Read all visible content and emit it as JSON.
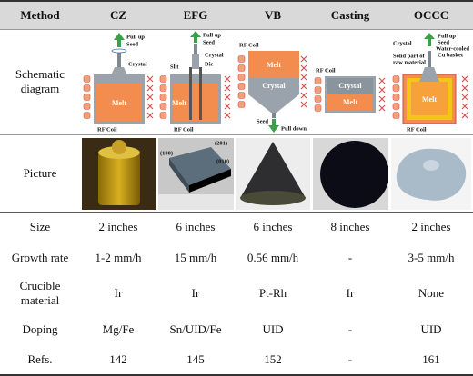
{
  "header": {
    "cells": [
      "Method",
      "CZ",
      "EFG",
      "VB",
      "Casting",
      "OCCC"
    ]
  },
  "rows": [
    {
      "label": "Schematic diagram"
    },
    {
      "label": "Picture"
    },
    {
      "label": "Size",
      "cells": [
        "2 inches",
        "6 inches",
        "6 inches",
        "8 inches",
        "2 inches"
      ]
    },
    {
      "label": "Growth rate",
      "cells": [
        "1-2 mm/h",
        "15 mm/h",
        "0.56 mm/h",
        "-",
        "3-5 mm/h"
      ]
    },
    {
      "label": "Crucible material",
      "cells": [
        "Ir",
        "Ir",
        "Pt-Rh",
        "Ir",
        "None"
      ]
    },
    {
      "label": "Doping",
      "cells": [
        "Mg/Fe",
        "Sn/UID/Fe",
        "UID",
        "-",
        "UID"
      ]
    },
    {
      "label": "Refs.",
      "cells": [
        "142",
        "145",
        "152",
        "-",
        "161"
      ]
    }
  ],
  "schematics": [
    {
      "labels": [
        "Pull up",
        "Seed",
        "Crystal",
        "Melt",
        "RF Coil"
      ]
    },
    {
      "labels": [
        "Pull up",
        "Seed",
        "Crystal",
        "Slit",
        "Die",
        "Melt",
        "RF Coil"
      ]
    },
    {
      "labels": [
        "RF Coil",
        "Melt",
        "Crystal",
        "Seed",
        "Pull down"
      ]
    },
    {
      "labels": [
        "RF Coil",
        "Crystal",
        "Melt"
      ]
    },
    {
      "labels": [
        "Crystal",
        "Pull up",
        "Seed",
        "Water-cooled",
        "Cu basket",
        "Solid part of",
        "raw material",
        "Melt",
        "RF Coil"
      ]
    }
  ],
  "picture_labels": [
    "(100)",
    "(201)",
    "(010)"
  ]
}
